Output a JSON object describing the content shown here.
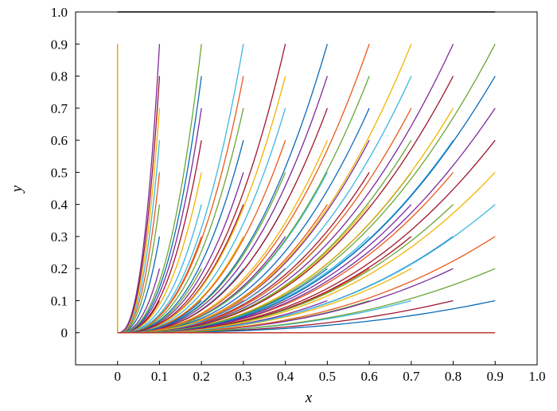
{
  "chart_data": {
    "type": "line",
    "title": "",
    "xlabel": "x",
    "ylabel": "y",
    "xlim": [
      -0.1,
      1.0
    ],
    "ylim": [
      -0.1,
      1.0
    ],
    "x_ticks": [
      0,
      0.1,
      0.2,
      0.3,
      0.4,
      0.5,
      0.6,
      0.7,
      0.8,
      0.9,
      1.0
    ],
    "x_tick_labels": [
      "0",
      "0.1",
      "0.2",
      "0.3",
      "0.4",
      "0.5",
      "0.6",
      "0.7",
      "0.8",
      "0.9",
      "1.0"
    ],
    "y_ticks": [
      0,
      0.1,
      0.2,
      0.3,
      0.4,
      0.5,
      0.6,
      0.7,
      0.8,
      0.9,
      1.0
    ],
    "y_tick_labels": [
      "0",
      "0.1",
      "0.2",
      "0.3",
      "0.4",
      "0.5",
      "0.6",
      "0.7",
      "0.8",
      "0.9",
      "1.0"
    ],
    "grid": false,
    "legend": "none",
    "curve_family": {
      "formula": "y = a * (x / b)^p",
      "x_start": 0,
      "endpoints_x": [
        0.1,
        0.2,
        0.3,
        0.4,
        0.5,
        0.6,
        0.7,
        0.8,
        0.9
      ],
      "endpoint_y_values": [
        0.1,
        0.2,
        0.3,
        0.4,
        0.5,
        0.6,
        0.7,
        0.8,
        0.9
      ],
      "exponent": 2.5
    },
    "special_series": [
      {
        "x": [
          0,
          0
        ],
        "y": [
          0,
          0.9
        ],
        "color": "#f0a30a"
      },
      {
        "x": [
          0,
          0.9
        ],
        "y": [
          0,
          0
        ],
        "color": "#c0392b"
      },
      {
        "x": [
          0,
          0.9
        ],
        "y": [
          1.0,
          1.0
        ],
        "color": "#000000"
      }
    ],
    "palette": [
      "#a0162d",
      "#7b2a9b",
      "#0a6ab8",
      "#6aa636",
      "#e85a1b",
      "#3cb7e0",
      "#f0b400"
    ]
  }
}
